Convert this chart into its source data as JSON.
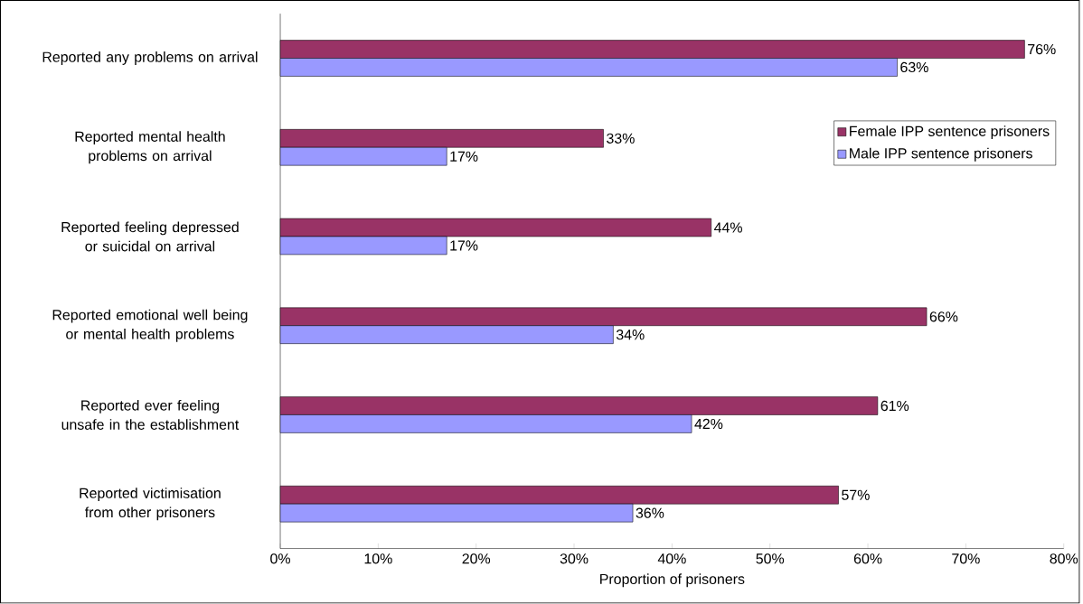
{
  "chart_data": {
    "type": "bar",
    "orientation": "horizontal",
    "xlabel": "Proportion of prisoners",
    "categories": [
      "Reported any problems on arrival",
      "Reported mental health problems on arrival",
      "Reported feeling depressed or suicidal on arrival",
      "Reported emotional well being or mental health problems",
      "Reported ever feeling unsafe in the establishment",
      "Reported victimisation from other prisoners"
    ],
    "series": [
      {
        "name": "Female IPP sentence prisoners",
        "color": "#993366",
        "values": [
          76,
          33,
          44,
          66,
          61,
          57
        ],
        "value_labels": [
          "76%",
          "33%",
          "44%",
          "66%",
          "61%",
          "57%"
        ]
      },
      {
        "name": "Male IPP sentence prisoners",
        "color": "#9999ff",
        "values": [
          63,
          17,
          17,
          34,
          42,
          36
        ],
        "value_labels": [
          "63%",
          "17%",
          "17%",
          "34%",
          "42%",
          "36%"
        ]
      }
    ],
    "xlim": [
      0,
      80
    ],
    "xticks": [
      {
        "value": 0,
        "label": "0%"
      },
      {
        "value": 10,
        "label": "10%"
      },
      {
        "value": 20,
        "label": "20%"
      },
      {
        "value": 30,
        "label": "30%"
      },
      {
        "value": 40,
        "label": "40%"
      },
      {
        "value": 50,
        "label": "50%"
      },
      {
        "value": 60,
        "label": "60%"
      },
      {
        "value": 70,
        "label": "70%"
      },
      {
        "value": 80,
        "label": "80%"
      }
    ],
    "legend": "right",
    "grid": false
  }
}
